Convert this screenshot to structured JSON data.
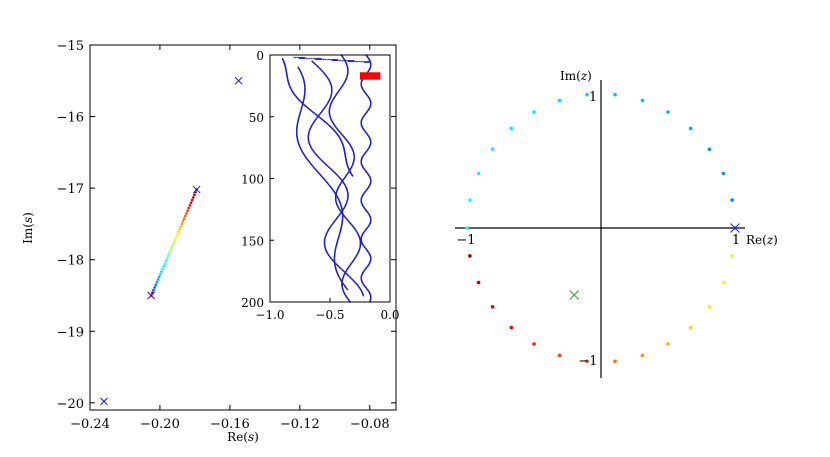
{
  "chart_data": [
    {
      "type": "scatter",
      "panel": "left-main",
      "xlabel": "Re(s)",
      "ylabel": "Im(s)",
      "xlim": [
        -0.24,
        -0.065
      ],
      "ylim": [
        -20.1,
        -15
      ],
      "xticks": [
        "-0.24",
        "-0.20",
        "-0.16",
        "-0.12",
        "-0.08"
      ],
      "xtick_values": [
        -0.24,
        -0.2,
        -0.16,
        -0.12,
        -0.08
      ],
      "yticks": [
        "-15",
        "-16",
        "-17",
        "-18",
        "-19",
        "-20"
      ],
      "ytick_values": [
        -15,
        -16,
        -17,
        -18,
        -19,
        -20
      ],
      "markers": [
        {
          "x": -0.155,
          "y": -15.5,
          "color": "#1f1fd8"
        },
        {
          "x": -0.179,
          "y": -17.02,
          "color": "#1f1fd8"
        },
        {
          "x": -0.205,
          "y": -18.5,
          "color": "#800080"
        },
        {
          "x": -0.232,
          "y": -19.98,
          "color": "#1f1fd8"
        }
      ],
      "path": {
        "x0": -0.179,
        "y0": -17.02,
        "x1": -0.205,
        "y1": -18.5,
        "points": 40,
        "colormap": "jet-reversed"
      }
    },
    {
      "type": "line",
      "panel": "inset",
      "xlim": [
        -1.0,
        0.0
      ],
      "ylim": [
        200,
        0
      ],
      "xticks": [
        "-1.0",
        "-0.5",
        "0.0"
      ],
      "xtick_values": [
        -1.0,
        -0.5,
        0.0
      ],
      "yticks": [
        "0",
        "50",
        "100",
        "150",
        "200"
      ],
      "ytick_values": [
        0,
        50,
        100,
        150,
        200
      ],
      "series_color": "#1f1fd8",
      "highlight": {
        "x0": -0.25,
        "x1": -0.08,
        "y0": 14,
        "y1": 20,
        "color": "#ff0000"
      }
    },
    {
      "type": "scatter",
      "panel": "right-unit-circle",
      "xlabel": "Re(z)",
      "ylabel": "Im(z)",
      "tick_labels": {
        "neg_one_x": "−1",
        "one_x": "1",
        "one_y": "1",
        "neg_one_y": "−1"
      },
      "points_on_circle": 30,
      "markers": [
        {
          "x": 1.0,
          "y": 0.0,
          "color": "#1f1fd8"
        },
        {
          "x": -0.2,
          "y": -0.5,
          "color": "#2e9e2e"
        }
      ]
    }
  ]
}
